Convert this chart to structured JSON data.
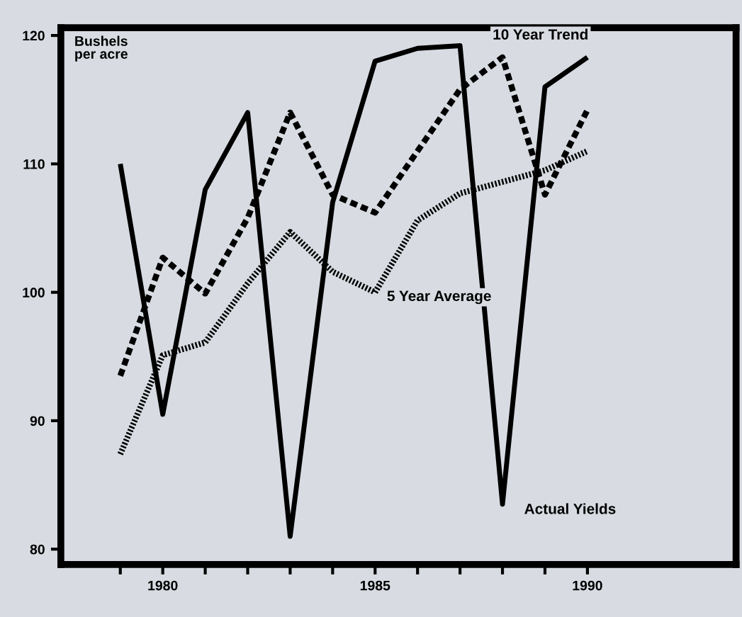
{
  "chart_data": {
    "type": "line",
    "ylabel": "Bushels\nper acre",
    "x": [
      1979,
      1980,
      1981,
      1982,
      1983,
      1984,
      1985,
      1986,
      1987,
      1988,
      1989,
      1990
    ],
    "series": [
      {
        "name": "Actual Yields",
        "color": "#000000",
        "line_style": "solid",
        "values": [
          110,
          90.5,
          108,
          114,
          81,
          107,
          118,
          119,
          119.2,
          83.5,
          116,
          118.3
        ]
      },
      {
        "name": "10 Year Trend",
        "color": "#000000",
        "line_style": "dashed",
        "values": [
          93.5,
          102.7,
          99.9,
          105.8,
          114,
          107.6,
          106.2,
          111,
          115.8,
          118.3,
          107.6,
          114.2
        ]
      },
      {
        "name": "5 Year Average",
        "color": "#000000",
        "line_style": "dotted",
        "values": [
          87.4,
          95.1,
          96.1,
          100.7,
          104.7,
          101.6,
          100,
          105.6,
          107.7,
          108.6,
          109.5,
          111
        ]
      }
    ],
    "xlim": [
      1977.6,
      1993.5
    ],
    "ylim": [
      78.8,
      120.6
    ],
    "xticks": [
      {
        "value": 1979,
        "label": null
      },
      1980,
      {
        "value": 1981,
        "label": null
      },
      {
        "value": 1982,
        "label": null
      },
      {
        "value": 1983,
        "label": null
      },
      {
        "value": 1984,
        "label": null
      },
      1985,
      {
        "value": 1986,
        "label": null
      },
      {
        "value": 1987,
        "label": null
      },
      {
        "value": 1988,
        "label": null
      },
      {
        "value": 1989,
        "label": null
      },
      1990
    ],
    "yticks": [
      80,
      90,
      100,
      110,
      120
    ],
    "grid": false,
    "legend": false
  }
}
